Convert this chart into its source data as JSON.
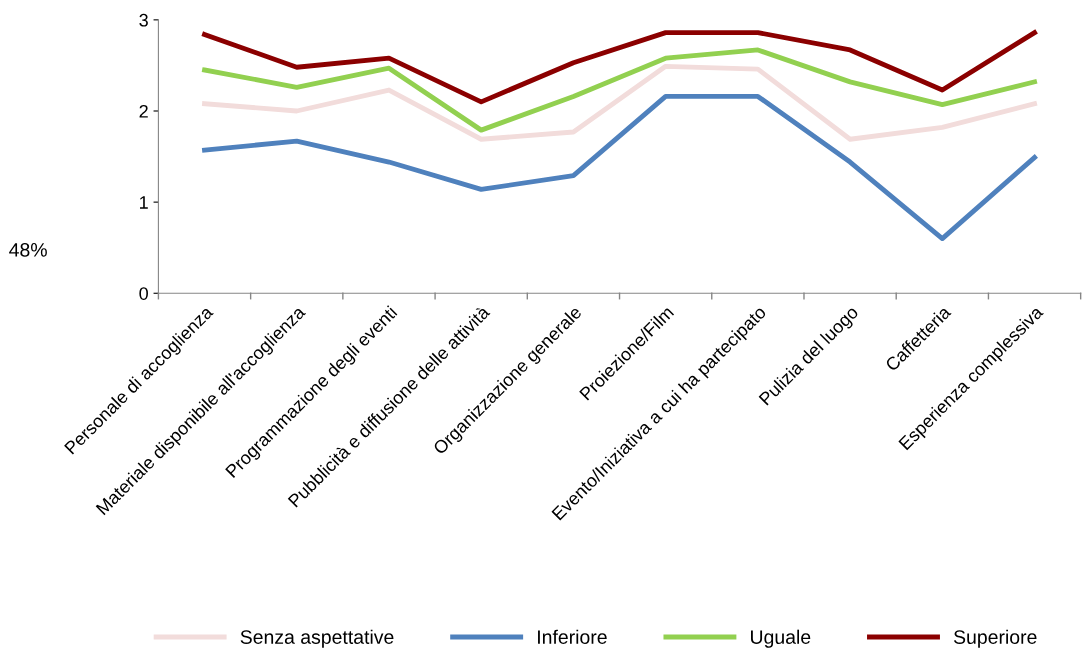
{
  "chart_data": {
    "type": "line",
    "categories": [
      "Personale di accoglienza",
      "Materiale disponibile all'accoglienza",
      "Programmazione degli eventi",
      "Pubblicità e diffusione delle attività",
      "Organizzazione generale",
      "Proiezione/Film",
      "Evento/Iniziativa a cui ha partecipato",
      "Pulizia del luogo",
      "Caffetteria",
      "Esperienza complessiva"
    ],
    "series": [
      {
        "name": "Senza aspettative",
        "color": "#f2dcdb",
        "values": [
          2.08,
          2.0,
          2.23,
          1.69,
          1.77,
          2.49,
          2.46,
          1.69,
          1.82,
          2.08
        ]
      },
      {
        "name": "Inferiore",
        "color": "#4f81bd",
        "values": [
          1.57,
          1.67,
          1.44,
          1.14,
          1.29,
          2.16,
          2.16,
          1.44,
          0.6,
          1.49
        ]
      },
      {
        "name": "Uguale",
        "color": "#92d050",
        "values": [
          2.45,
          2.26,
          2.47,
          1.79,
          2.16,
          2.58,
          2.67,
          2.32,
          2.07,
          2.32
        ]
      },
      {
        "name": "Superiore",
        "color": "#8b0000",
        "values": [
          2.84,
          2.48,
          2.58,
          2.1,
          2.53,
          2.86,
          2.86,
          2.67,
          2.23,
          2.86
        ]
      }
    ],
    "ylim": [
      0,
      3
    ],
    "yticks": [
      0,
      1,
      2,
      3
    ],
    "annotations": [
      "48%"
    ],
    "grid": false,
    "legend": "bottom",
    "marker": "none",
    "line_style": "solid"
  }
}
